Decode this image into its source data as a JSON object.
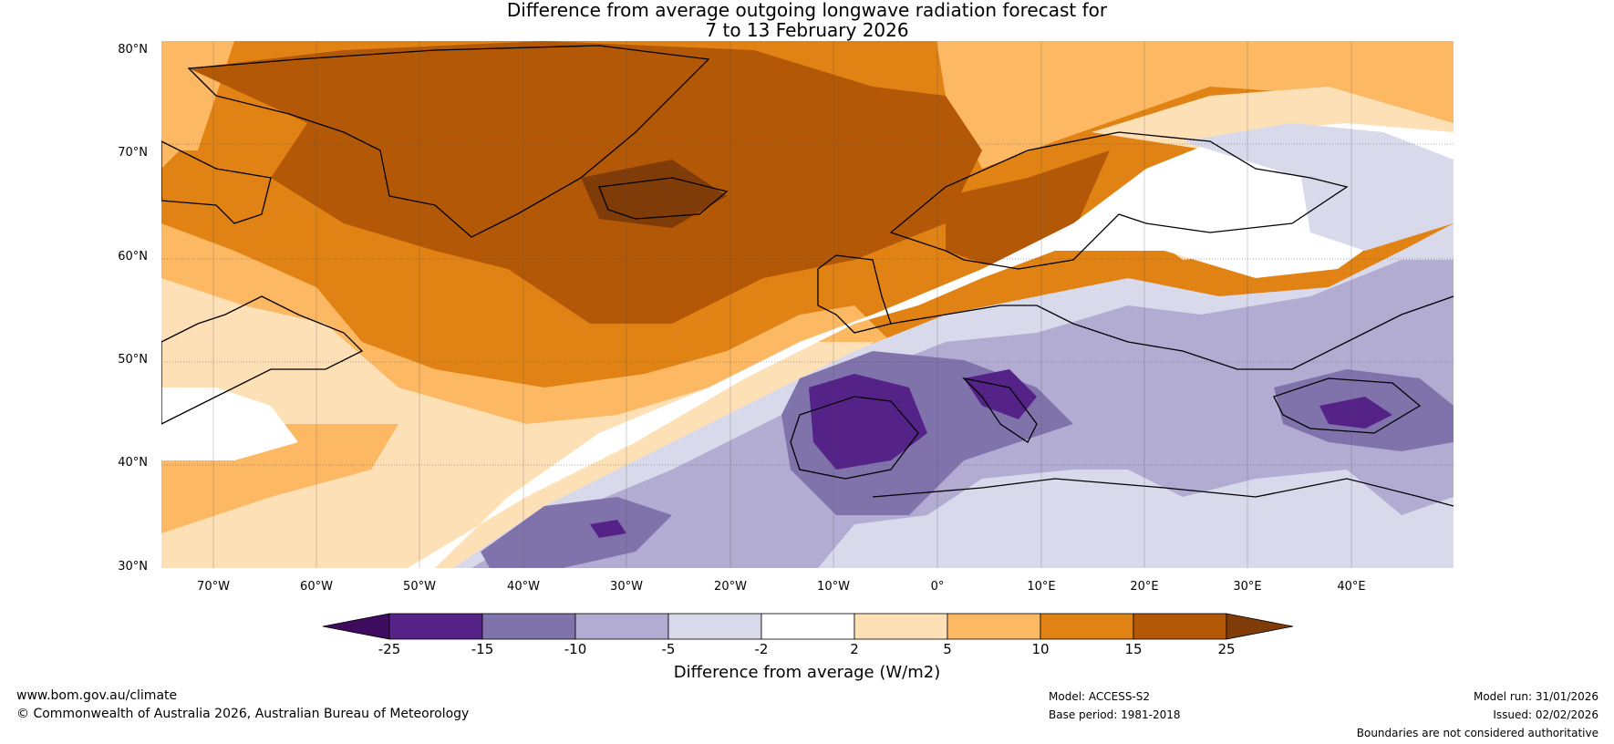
{
  "title": {
    "line1": "Difference from average outgoing longwave radiation forecast for",
    "line2": "7 to 13 February 2026"
  },
  "axes": {
    "lat_labels": [
      "80°N",
      "70°N",
      "60°N",
      "50°N",
      "40°N",
      "30°N"
    ],
    "lon_labels": [
      "70°W",
      "60°W",
      "50°W",
      "40°W",
      "30°W",
      "20°W",
      "10°W",
      "0°",
      "10°E",
      "20°E",
      "30°E",
      "40°E"
    ]
  },
  "legend": {
    "title": "Difference from average (W/m2)",
    "ticks": [
      "-25",
      "-15",
      "-10",
      "-5",
      "-2",
      "2",
      "5",
      "10",
      "15",
      "25"
    ],
    "colors": [
      "#3e0b5e",
      "#552288",
      "#8073ac",
      "#b2abd2",
      "#d8daeb",
      "#ffffff",
      "#fee0b6",
      "#fdb863",
      "#e08214",
      "#b35806",
      "#7f3b08"
    ]
  },
  "footer": {
    "website": "www.bom.gov.au/climate",
    "copyright": "© Commonwealth of Australia 2026, Australian Bureau of Meteorology",
    "model": "Model: ACCESS-S2",
    "base_period": "Base period: 1981-2018",
    "model_run": "Model run: 31/01/2026",
    "issued": "Issued: 02/02/2026",
    "disclaimer": "Boundaries are not considered authoritative"
  }
}
